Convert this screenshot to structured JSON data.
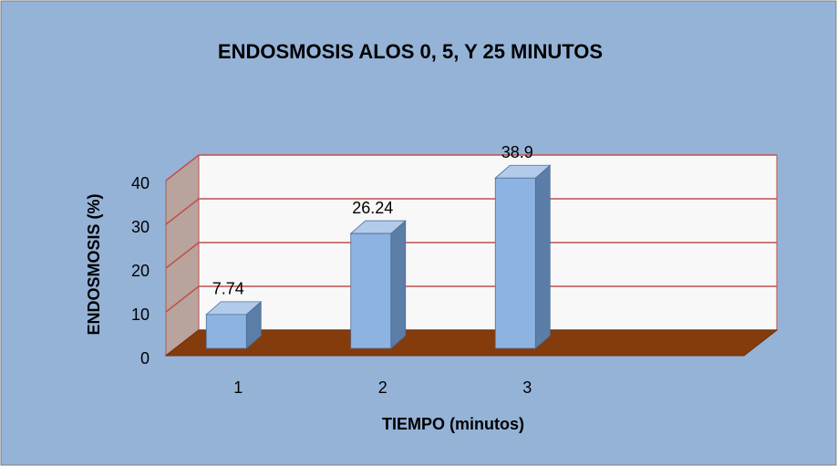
{
  "chart_data": {
    "type": "bar3d",
    "title": "ENDOSMOSIS ALOS 0, 5, Y 25 MINUTOS",
    "x_label": "TIEMPO (minutos)",
    "y_label": "ENDOSMOSIS (%)",
    "categories": [
      "1",
      "2",
      "3",
      null
    ],
    "values": [
      7.74,
      26.24,
      38.9,
      null
    ],
    "color": "#8db3e2",
    "ylim": [
      0,
      40
    ],
    "yticks": [
      0,
      10,
      20,
      30,
      40
    ],
    "grid": true
  }
}
